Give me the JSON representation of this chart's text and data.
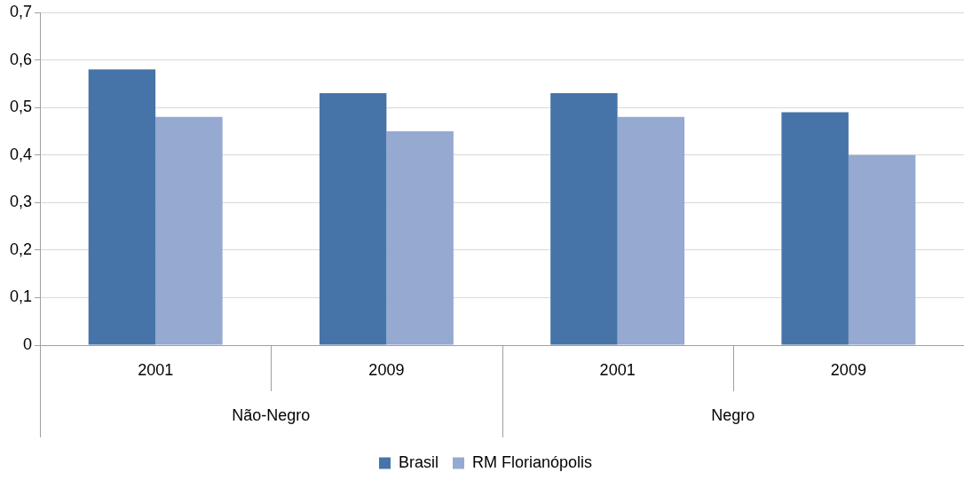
{
  "chart_data": {
    "type": "bar",
    "categories": [
      "2001",
      "2009",
      "2001",
      "2009"
    ],
    "series": [
      {
        "name": "Brasil",
        "color": "#4674a8",
        "values": [
          0.58,
          0.53,
          0.53,
          0.49
        ]
      },
      {
        "name": "RM Florianópolis",
        "color": "#95a9d1",
        "values": [
          0.48,
          0.45,
          0.48,
          0.4
        ]
      }
    ],
    "ylim": [
      0,
      0.7
    ],
    "yticks": [
      {
        "value": 0,
        "label": "0"
      },
      {
        "value": 0.1,
        "label": "0,1"
      },
      {
        "value": 0.2,
        "label": "0,2"
      },
      {
        "value": 0.3,
        "label": "0,3"
      },
      {
        "value": 0.4,
        "label": "0,4"
      },
      {
        "value": 0.5,
        "label": "0,5"
      },
      {
        "value": 0.6,
        "label": "0,6"
      },
      {
        "value": 0.7,
        "label": "0,7"
      }
    ],
    "annotations": [
      "Não-Negro",
      "Negro"
    ],
    "grid": "y",
    "legend": "bottom"
  }
}
